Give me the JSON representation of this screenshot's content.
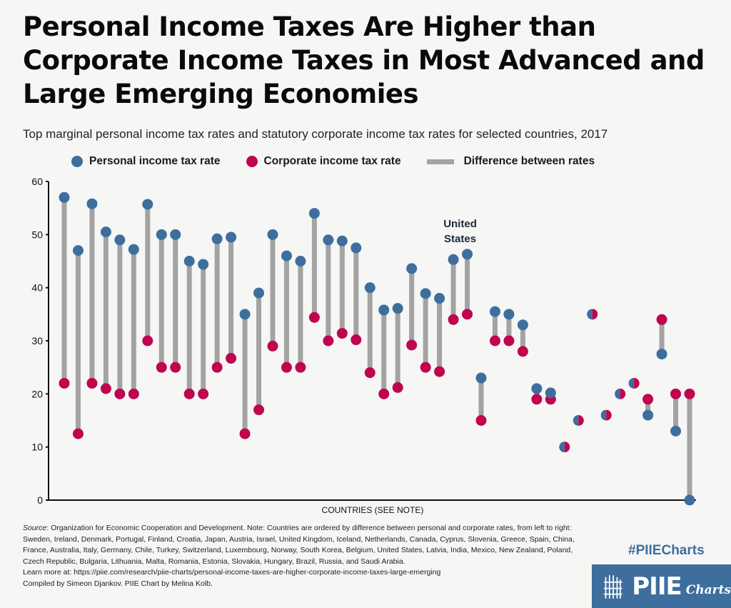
{
  "header": {
    "title": "Personal Income Taxes Are Higher than Corporate Income Taxes in Most Advanced and Large Emerging Economies",
    "subtitle": "Top marginal personal income tax rates and statutory corporate income tax rates for selected countries, 2017"
  },
  "legend": {
    "personal_label": "Personal income tax rate",
    "corporate_label": "Corporate income tax rate",
    "difference_label": "Difference between rates"
  },
  "colors": {
    "personal": "#3d6e9e",
    "corporate": "#c0054f",
    "difference": "#a3a3a3",
    "brand": "#3d6e9e"
  },
  "chart_data": {
    "type": "scatter",
    "subtype": "dumbbell",
    "title": "Personal Income Taxes Are Higher than Corporate Income Taxes in Most Advanced and Large Emerging Economies",
    "xlabel": "COUNTRIES (SEE NOTE)",
    "ylabel": "",
    "ylim": [
      0,
      60
    ],
    "yticks": [
      0,
      10,
      20,
      30,
      40,
      50,
      60
    ],
    "grid": false,
    "legend_position": "top",
    "annotation": {
      "label": "United States",
      "target": "United States"
    },
    "categories": [
      "Sweden",
      "Ireland",
      "Denmark",
      "Portugal",
      "Finland",
      "Croatia",
      "Japan",
      "Austria",
      "Israel",
      "United Kingdom",
      "Iceland",
      "Netherlands",
      "Canada",
      "Cyprus",
      "Slovenia",
      "Greece",
      "Spain",
      "China",
      "France",
      "Australia",
      "Italy",
      "Germany",
      "Chile",
      "Turkey",
      "Switzerland",
      "Luxembourg",
      "Norway",
      "South Korea",
      "Belgium",
      "United States",
      "Latvia",
      "India",
      "Mexico",
      "New Zealand",
      "Poland",
      "Czech Republic",
      "Bulgaria",
      "Lithuania",
      "Malta",
      "Romania",
      "Estonia",
      "Slovakia",
      "Hungary",
      "Brazil",
      "Russia",
      "Saudi Arabia"
    ],
    "series": [
      {
        "name": "Personal income tax rate",
        "values": [
          57,
          47,
          55.8,
          50.5,
          49,
          47.2,
          55.7,
          50,
          50,
          45,
          44.4,
          49.2,
          49.5,
          35,
          39,
          50,
          46,
          45,
          54,
          49,
          48.8,
          47.5,
          40,
          35.8,
          36.1,
          43.6,
          38.9,
          38,
          45.3,
          46.3,
          23,
          35.5,
          35,
          33,
          21,
          20.2,
          10,
          15,
          35,
          16,
          20,
          22,
          16,
          27.5,
          13,
          0
        ]
      },
      {
        "name": "Corporate income tax rate",
        "values": [
          22,
          12.5,
          22,
          21,
          20,
          20,
          30,
          25,
          25,
          20,
          20,
          25,
          26.7,
          12.5,
          17,
          29,
          25,
          25,
          34.4,
          30,
          31.4,
          30.2,
          24,
          20,
          21.2,
          29.2,
          25,
          24.2,
          34,
          35,
          15,
          30,
          30,
          28,
          19,
          19,
          10,
          15,
          35,
          16,
          20,
          22,
          19,
          34,
          20,
          20
        ]
      }
    ]
  },
  "footer": {
    "source_label": "Source",
    "source_text": ": Organization for Economic Cooperation and Development. Note: Countries are ordered by difference between personal and corporate rates, from left to right: Sweden, Ireland, Denmark, Portugal, Finland, Croatia, Japan, Austria, Israel, United Kingdom, Iceland, Netherlands, Canada, Cyprus, Slovenia, Greece, Spain, China, France, Australia, Italy, Germany, Chile, Turkey, Switzerland, Luxembourg, Norway, South Korea, Belgium, United States, Latvia, India, Mexico, New Zealand, Poland, Czech Republic, Bulgaria, Lithuania, Malta, Romania, Estonia, Slovakia, Hungary, Brazil, Russia, and Saudi Arabia.",
    "learn_more": "Learn more at: https://piie.com/research/piie-charts/personal-income-taxes-are-higher-corporate-income-taxes-large-emerging",
    "credit": "Compiled by Simeon Djankov. PIIE Chart by Melina Kolb."
  },
  "branding": {
    "hashtag": "#PIIECharts",
    "logo_text": "PIIE",
    "logo_sub": "Charts"
  }
}
